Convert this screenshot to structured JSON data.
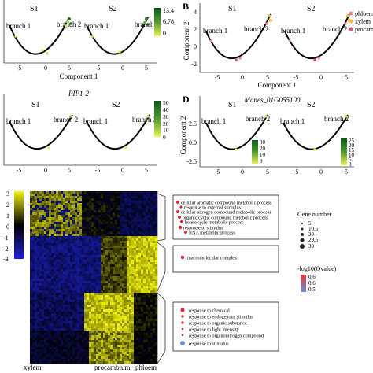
{
  "panels": {
    "A": {
      "letter": "",
      "title": "",
      "s1": "S1",
      "s2": "S2",
      "branch1": "branch 1",
      "branch2": "branch 2",
      "xticks": [
        "-5",
        "0",
        "5",
        "-5",
        "0",
        "5"
      ],
      "yticks": [],
      "xlabel": "Component 1",
      "ylabel": "",
      "colorbar": {
        "ticks": [
          "13.4",
          "6.78",
          "0"
        ],
        "low": "#e8f25a",
        "high": "#0b5a1a"
      }
    },
    "B": {
      "letter": "B",
      "title": "",
      "s1": "S1",
      "s2": "S2",
      "branch1": "branch 1",
      "branch2": "branch 2",
      "xticks": [
        "-5",
        "0",
        "5",
        "-5",
        "0",
        "5"
      ],
      "yticks": [
        "4",
        "2",
        "0",
        "-2"
      ],
      "xlabel": "Component 1",
      "ylabel": "Component 2",
      "legend": [
        {
          "label": "phloem",
          "color": "#f08c8c"
        },
        {
          "label": "xylem",
          "color": "#f2b84a"
        },
        {
          "label": "procam",
          "color": "#d94a8a"
        }
      ]
    },
    "C": {
      "letter": "",
      "title": "PIP1-2",
      "s1": "S1",
      "s2": "S2",
      "branch1": "branch 1",
      "branch2": "branch 2",
      "xticks": [
        "-5",
        "0",
        "5",
        "-5",
        "0",
        "5"
      ],
      "yticks": [],
      "xlabel": "",
      "ylabel": "",
      "colorbar": {
        "ticks": [
          "50",
          "40",
          "30",
          "20",
          "10",
          "0"
        ],
        "low": "#e8f25a",
        "high": "#0b5a1a"
      }
    },
    "D": {
      "letter": "D",
      "title": "Manes_01G055100",
      "s1": "S1",
      "s2": "S2",
      "branch1": "branch 1",
      "branch2": "branch 2",
      "xticks": [
        "-5",
        "0",
        "5",
        "-5",
        "0",
        "5"
      ],
      "yticks": [
        "2.5",
        "0.0",
        "-2.5"
      ],
      "xlabel": "",
      "ylabel": "Component 2",
      "colorbar_left": {
        "ticks": [
          "30",
          "20",
          "10",
          "0"
        ]
      },
      "colorbar_right": {
        "ticks": [
          "25",
          "20",
          "15",
          "10",
          "5",
          "0"
        ]
      }
    }
  },
  "heatmap": {
    "scale_ticks": [
      "3",
      "2",
      "1",
      "0",
      "-1",
      "-2",
      "-3"
    ],
    "xlabels": [
      "xylem",
      "procambium",
      "phloem"
    ],
    "low": "#1c22d6",
    "mid": "#000000",
    "high": "#f2f20a"
  },
  "go_boxes": [
    {
      "terms": [
        {
          "text": "cellular aromatic compound metabolic process",
          "color": "#d62a3a"
        },
        {
          "text": "response to external stimulus",
          "color": "#d62a3a"
        },
        {
          "text": "cellular nitrogen compound metabolic process",
          "color": "#d62a3a"
        },
        {
          "text": "organic cyclic compound metabolic process",
          "color": "#d62a3a"
        },
        {
          "text": "heterocycle metabolic process",
          "color": "#d62a3a"
        },
        {
          "text": "response to stimulus",
          "color": "#d62a3a"
        },
        {
          "text": "RNA metabolic process",
          "color": "#d62a3a"
        }
      ]
    },
    {
      "terms": [
        {
          "text": "macromolecular complex",
          "color": "#d62a3a"
        }
      ]
    },
    {
      "terms": [
        {
          "text": "response to chemical",
          "color": "#d62a3a"
        },
        {
          "text": "response to endogenous stimulus",
          "color": "#d62a3a"
        },
        {
          "text": "response to organic substance",
          "color": "#d62a3a"
        },
        {
          "text": "response to light intensity",
          "color": "#d62a3a"
        },
        {
          "text": "response to organonitrogen compound",
          "color": "#d62a3a"
        },
        {
          "text": "response to stimulus",
          "color": "#6b8fd8"
        }
      ]
    }
  ],
  "legend_gene": {
    "title": "Gene number",
    "items": [
      "5",
      "10.5",
      "20",
      "29.5",
      "39"
    ]
  },
  "legend_q": {
    "title": "-log10(Qvalue)",
    "ticks": [
      "0.6",
      "0.6",
      "0.5"
    ],
    "high": "#e23a3a",
    "low": "#6b8fd8"
  }
}
